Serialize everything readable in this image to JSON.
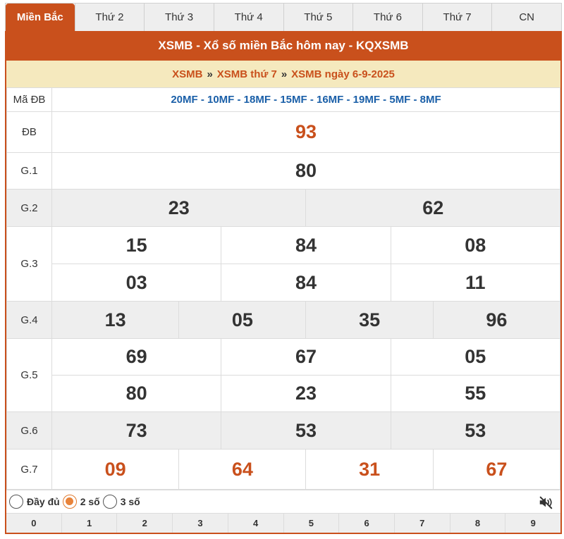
{
  "tabs": [
    "Miền Bắc",
    "Thứ 2",
    "Thứ 3",
    "Thứ 4",
    "Thứ 5",
    "Thứ 6",
    "Thứ 7",
    "CN"
  ],
  "title": "XSMB - Xổ số miền Bắc hôm nay - KQXSMB",
  "breadcrumb": {
    "a": "XSMB",
    "b": "XSMB thứ 7",
    "c": "XSMB ngày 6-9-2025",
    "sep": "»"
  },
  "madb": {
    "label": "Mã ĐB",
    "value": "20MF - 10MF - 18MF - 15MF - 16MF - 19MF - 5MF - 8MF"
  },
  "prizes": {
    "db": {
      "label": "ĐB",
      "values": [
        "93"
      ]
    },
    "g1": {
      "label": "G.1",
      "values": [
        "80"
      ]
    },
    "g2": {
      "label": "G.2",
      "values": [
        "23",
        "62"
      ]
    },
    "g3": {
      "label": "G.3",
      "values": [
        "15",
        "84",
        "08",
        "03",
        "84",
        "11"
      ]
    },
    "g4": {
      "label": "G.4",
      "values": [
        "13",
        "05",
        "35",
        "96"
      ]
    },
    "g5": {
      "label": "G.5",
      "values": [
        "69",
        "67",
        "05",
        "80",
        "23",
        "55"
      ]
    },
    "g6": {
      "label": "G.6",
      "values": [
        "73",
        "53",
        "53"
      ]
    },
    "g7": {
      "label": "G.7",
      "values": [
        "09",
        "64",
        "31",
        "67"
      ]
    }
  },
  "options": {
    "full": "Đầy đủ",
    "two": "2 số",
    "three": "3 số",
    "selected": "two"
  },
  "digits": [
    "0",
    "1",
    "2",
    "3",
    "4",
    "5",
    "6",
    "7",
    "8",
    "9"
  ],
  "colors": {
    "accent": "#c9501c",
    "breadcrumb_bg": "#f5e9be",
    "madb": "#1a5fa8"
  },
  "icons": {
    "mute": "volume-mute-icon"
  }
}
